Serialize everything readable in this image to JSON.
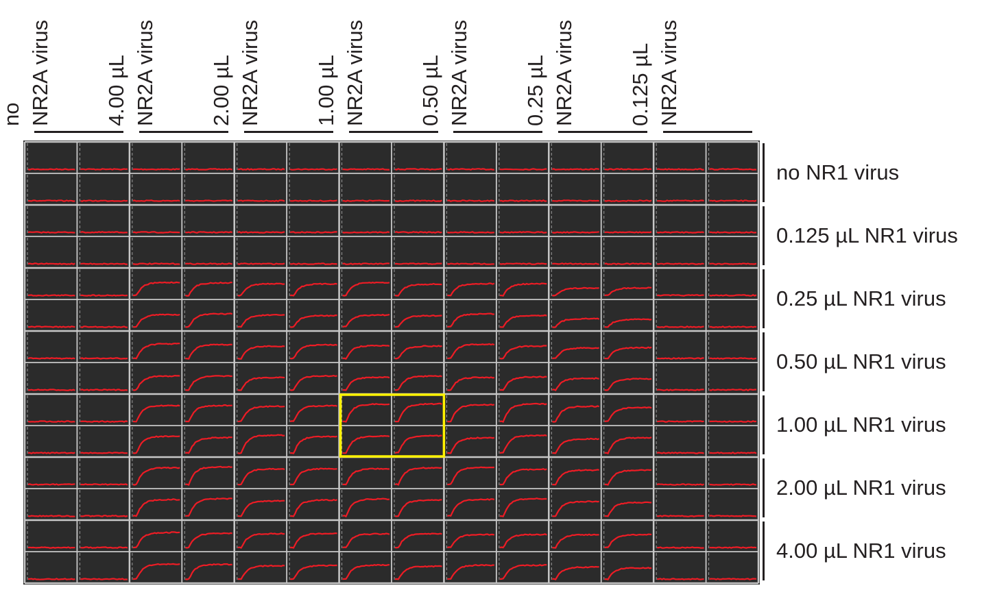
{
  "columns": [
    {
      "line1": "no",
      "line2": "NR2A virus"
    },
    {
      "line1": "4.00 µL",
      "line2": "NR2A virus"
    },
    {
      "line1": "2.00 µL",
      "line2": "NR2A virus"
    },
    {
      "line1": "1.00 µL",
      "line2": "NR2A virus"
    },
    {
      "line1": "0.50 µL",
      "line2": "NR2A virus"
    },
    {
      "line1": "0.25 µL",
      "line2": "NR2A virus"
    },
    {
      "line1": "0.125 µL",
      "line2": "NR2A virus"
    }
  ],
  "rows": [
    {
      "label": "no NR1 virus"
    },
    {
      "label": "0.125 µL NR1 virus"
    },
    {
      "label": "0.25 µL NR1 virus"
    },
    {
      "label": "0.50 µL NR1 virus"
    },
    {
      "label": "1.00 µL NR1 virus"
    },
    {
      "label": "2.00 µL NR1 virus"
    },
    {
      "label": "4.00 µL NR1 virus"
    }
  ],
  "grid": {
    "well_cols": 14,
    "well_rows": 14,
    "highlighted_group": {
      "row": 4,
      "col": 3
    },
    "response_strength": [
      [
        0.0,
        0.0,
        0.0,
        0.0,
        0.0,
        0.0,
        0.0
      ],
      [
        0.0,
        0.0,
        0.0,
        0.0,
        0.0,
        0.0,
        0.0
      ],
      [
        0.0,
        0.55,
        0.5,
        0.55,
        0.55,
        0.35,
        0.0
      ],
      [
        0.0,
        0.65,
        0.6,
        0.6,
        0.6,
        0.5,
        0.0
      ],
      [
        0.0,
        0.75,
        0.75,
        0.8,
        0.75,
        0.65,
        0.0
      ],
      [
        0.0,
        0.75,
        0.7,
        0.75,
        0.75,
        0.65,
        0.0
      ],
      [
        0.0,
        0.65,
        0.6,
        0.6,
        0.6,
        0.55,
        0.0
      ]
    ]
  },
  "colors": {
    "well_background": "#2b2b2b",
    "grid_line": "#c8c8c8",
    "trace": "#ee1c25",
    "highlight": "#fff200",
    "text": "#231f20"
  }
}
